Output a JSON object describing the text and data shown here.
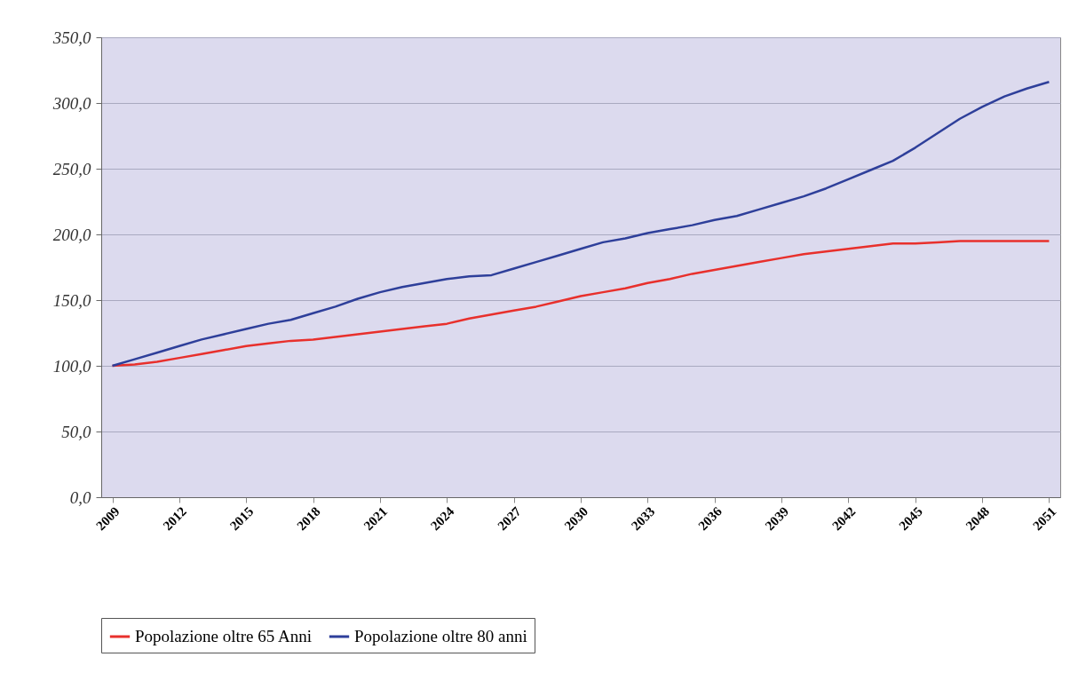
{
  "chart_data": {
    "type": "line",
    "x": [
      2009,
      2010,
      2011,
      2012,
      2013,
      2014,
      2015,
      2016,
      2017,
      2018,
      2019,
      2020,
      2021,
      2022,
      2023,
      2024,
      2025,
      2026,
      2027,
      2028,
      2029,
      2030,
      2031,
      2032,
      2033,
      2034,
      2035,
      2036,
      2037,
      2038,
      2039,
      2040,
      2041,
      2042,
      2043,
      2044,
      2045,
      2046,
      2047,
      2048,
      2049,
      2050,
      2051
    ],
    "series": [
      {
        "name": "Popolazione oltre 65 Anni",
        "color": "#e8302c",
        "values": [
          100,
          101,
          103,
          106,
          109,
          112,
          115,
          117,
          119,
          120,
          122,
          124,
          126,
          128,
          130,
          132,
          136,
          139,
          142,
          145,
          149,
          153,
          156,
          159,
          163,
          166,
          170,
          173,
          176,
          179,
          182,
          185,
          187,
          189,
          191,
          193,
          193,
          194,
          195,
          195,
          195,
          195,
          195
        ]
      },
      {
        "name": "Popolazione oltre 80 anni",
        "color": "#2e3f9a",
        "values": [
          100,
          105,
          110,
          115,
          120,
          124,
          128,
          132,
          135,
          140,
          145,
          151,
          156,
          160,
          163,
          166,
          168,
          169,
          174,
          179,
          184,
          189,
          194,
          197,
          201,
          204,
          207,
          211,
          214,
          219,
          224,
          229,
          235,
          242,
          249,
          256,
          266,
          277,
          288,
          297,
          305,
          311,
          316
        ]
      }
    ],
    "xlim": [
      2008.5,
      2051.5
    ],
    "xticks": [
      2009,
      2012,
      2015,
      2018,
      2021,
      2024,
      2027,
      2030,
      2033,
      2036,
      2039,
      2042,
      2045,
      2048,
      2051
    ],
    "ylim": [
      0,
      350
    ],
    "yticks": [
      {
        "value": 0,
        "label": "0,0"
      },
      {
        "value": 50,
        "label": "50,0"
      },
      {
        "value": 100,
        "label": "100,0"
      },
      {
        "value": 150,
        "label": "150,0"
      },
      {
        "value": 200,
        "label": "200,0"
      },
      {
        "value": 250,
        "label": "250,0"
      },
      {
        "value": 300,
        "label": "300,0"
      },
      {
        "value": 350,
        "label": "350,0"
      }
    ],
    "grid": "y",
    "legend": "bottom"
  }
}
